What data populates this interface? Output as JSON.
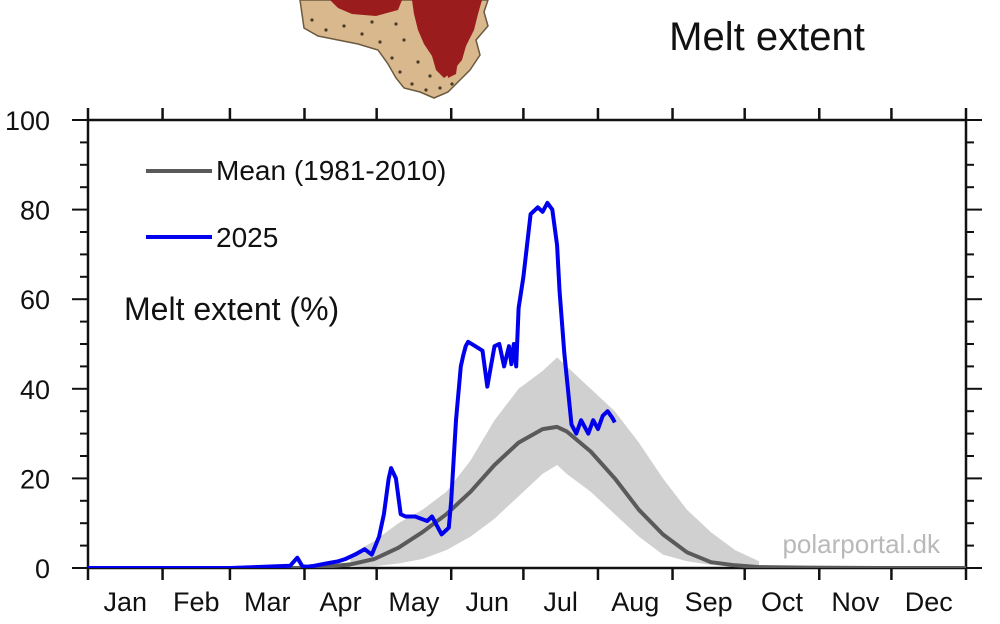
{
  "title": "Melt extent",
  "watermark": "polarportal.dk",
  "chart_data": {
    "type": "line",
    "ylabel": "Melt extent (%)",
    "ylim": [
      0,
      100
    ],
    "yticks": [
      0,
      20,
      40,
      60,
      80,
      100
    ],
    "xlim": [
      1,
      366
    ],
    "months": [
      "Jan",
      "Feb",
      "Mar",
      "Apr",
      "May",
      "Jun",
      "Jul",
      "Aug",
      "Sep",
      "Oct",
      "Nov",
      "Dec"
    ],
    "grid": false,
    "legend_position": "top-left",
    "colors": {
      "mean": "#5a5a5a",
      "band": "#d0d0d0",
      "year": "#0000ee"
    },
    "series": [
      {
        "name": "Mean (1981-2010)",
        "color": "#5a5a5a",
        "x": [
          1,
          60,
          90,
          100,
          110,
          120,
          130,
          140,
          150,
          160,
          170,
          180,
          190,
          196,
          200,
          210,
          220,
          230,
          240,
          250,
          260,
          270,
          280,
          300,
          330,
          366
        ],
        "y": [
          0,
          0,
          0,
          0.3,
          0.8,
          2,
          4.5,
          8,
          12,
          17,
          23,
          28,
          31,
          31.5,
          30.5,
          26,
          20,
          13,
          7.5,
          3.5,
          1.3,
          0.6,
          0.2,
          0.1,
          0,
          0
        ]
      },
      {
        "name": "2025",
        "color": "#0000ee",
        "x": [
          1,
          60,
          85,
          88,
          90,
          92,
          95,
          100,
          105,
          108,
          112,
          116,
          119,
          122,
          124,
          126,
          127,
          129,
          131,
          133,
          137,
          142,
          144,
          146,
          148,
          151,
          152,
          154,
          156,
          157,
          158,
          159,
          162,
          165,
          167,
          170,
          172,
          174,
          176,
          177,
          178,
          179,
          180,
          182,
          185,
          188,
          190,
          192,
          194,
          196,
          197,
          199,
          202,
          204,
          206,
          209,
          211,
          213,
          215,
          217,
          219,
          220
        ],
        "y": [
          0,
          0,
          0.5,
          2.3,
          0.5,
          0.3,
          0.5,
          1,
          1.5,
          2,
          3,
          4.2,
          3,
          7,
          12,
          20,
          22.3,
          20,
          12,
          11.5,
          11.5,
          10.5,
          11.5,
          9.5,
          7.5,
          9,
          15,
          33,
          45,
          47.5,
          49.5,
          50.5,
          49.5,
          48.5,
          40.5,
          49.5,
          50,
          45,
          49.5,
          45.5,
          50,
          45,
          58,
          65,
          79,
          80.5,
          79.5,
          81.5,
          80,
          72,
          62,
          48,
          32,
          30,
          33,
          30,
          33,
          31,
          34,
          35,
          33.5,
          32.5
        ]
      }
    ],
    "band": {
      "name": "Mean (1981-2010) range",
      "x": [
        110,
        120,
        130,
        140,
        150,
        160,
        170,
        180,
        190,
        196,
        200,
        210,
        220,
        230,
        240,
        250,
        260,
        270,
        280
      ],
      "upper": [
        3,
        6,
        10,
        13,
        17,
        24,
        33,
        40,
        44,
        47,
        45,
        40,
        35,
        28,
        20,
        13,
        8,
        4,
        1.5
      ],
      "lower": [
        0.2,
        0.4,
        1,
        2,
        4,
        7,
        11,
        16,
        21,
        23,
        21,
        17,
        12,
        7,
        3,
        1.5,
        0.7,
        0.3,
        0
      ]
    }
  }
}
